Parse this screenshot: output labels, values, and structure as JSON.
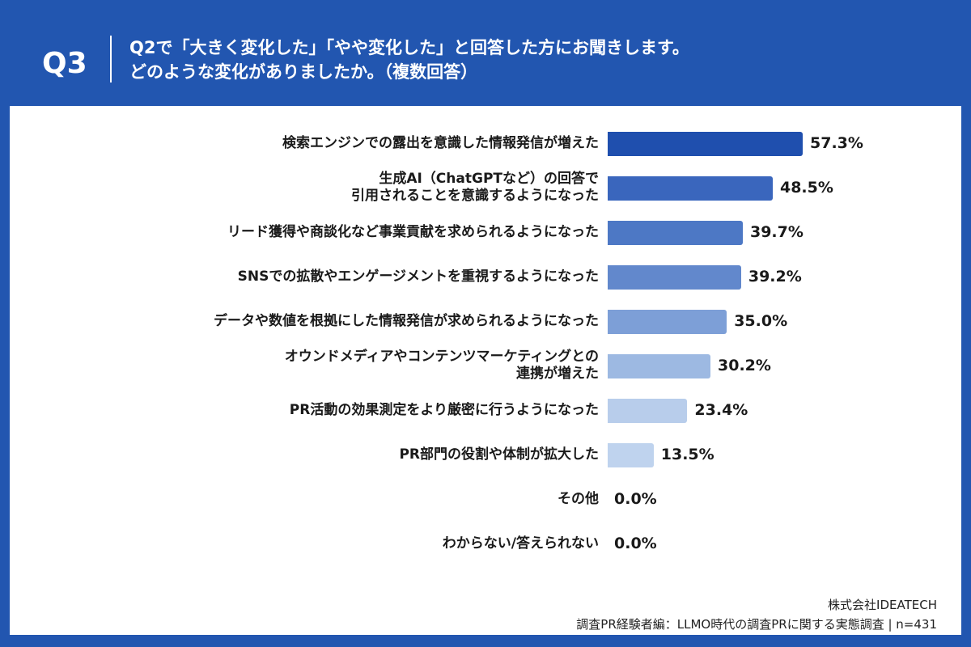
{
  "header": {
    "question_number": "Q3",
    "title_line1": "Q2で「大きく変化した」「やや変化した」と回答した方にお聞きします。",
    "title_line2": "どのような変化がありましたか。（複数回答）"
  },
  "chart_data": {
    "type": "bar",
    "orientation": "horizontal",
    "categories": [
      [
        "検索エンジンでの露出を意識した情報発信が増えた"
      ],
      [
        "生成AI（ChatGPTなど）の回答で",
        "引用されることを意識するようになった"
      ],
      [
        "リード獲得や商談化など事業貢献を求められるようになった"
      ],
      [
        "SNSでの拡散やエンゲージメントを重視するようになった"
      ],
      [
        "データや数値を根拠にした情報発信が求められるようになった"
      ],
      [
        "オウンドメディアやコンテンツマーケティングとの",
        "連携が増えた"
      ],
      [
        "PR活動の効果測定をより厳密に行うようになった"
      ],
      [
        "PR部門の役割や体制が拡大した"
      ],
      [
        "その他"
      ],
      [
        "わからない/答えられない"
      ]
    ],
    "values": [
      57.3,
      48.5,
      39.7,
      39.2,
      35.0,
      30.2,
      23.4,
      13.5,
      0.0,
      0.0
    ],
    "value_labels": [
      "57.3%",
      "48.5%",
      "39.7%",
      "39.2%",
      "35.0%",
      "30.2%",
      "23.4%",
      "13.5%",
      "0.0%",
      "0.0%"
    ],
    "colors": [
      "#1f4fae",
      "#3a66bd",
      "#4d78c5",
      "#6288cc",
      "#7d9fd7",
      "#9db9e2",
      "#b8cdeb",
      "#bfd3ee",
      "#c8d9f0",
      "#c8d9f0"
    ],
    "xlim": [
      0,
      60
    ],
    "grid": false
  },
  "footer": {
    "company": "株式会社IDEATECH",
    "source": "調査PR経験者編：LLMO時代の調査PRに関する実態調査 | n=431"
  }
}
